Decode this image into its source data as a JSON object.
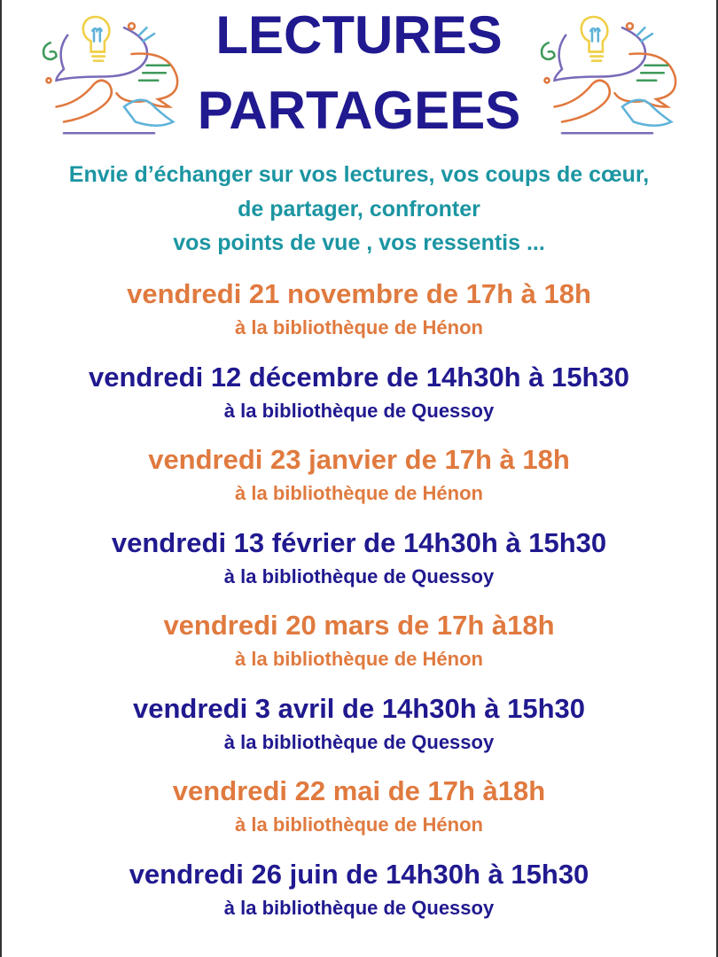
{
  "title": {
    "line1": "LECTURES",
    "line2": "PARTAGEES"
  },
  "subtitle": [
    "Envie d’échanger sur vos lectures, vos coups de cœur,",
    "de partager, confronter",
    "vos points de vue , vos ressentis ..."
  ],
  "illustration": {
    "icon": "speech-bubbles-hands-lightbulb-icon"
  },
  "colors": {
    "title": "#20198f",
    "subtitle": "#1b95a2",
    "orange": "#e07a3f",
    "navy": "#20198f"
  },
  "events": [
    {
      "date": "vendredi 21 novembre de 17h à 18h",
      "place": "à la bibliothèque de Hénon",
      "color": "orange"
    },
    {
      "date": "vendredi 12 décembre de 14h30h à 15h30",
      "place": "à la bibliothèque de Quessoy",
      "color": "navy"
    },
    {
      "date": "vendredi 23 janvier de 17h à 18h",
      "place": "à la bibliothèque de Hénon",
      "color": "orange"
    },
    {
      "date": "vendredi 13 février de 14h30h à 15h30",
      "place": "à la bibliothèque de Quessoy",
      "color": "navy"
    },
    {
      "date": "vendredi 20 mars de 17h à18h",
      "place": "à la bibliothèque de Hénon",
      "color": "orange"
    },
    {
      "date": "vendredi 3 avril de 14h30h à 15h30",
      "place": "à la bibliothèque de Quessoy",
      "color": "navy"
    },
    {
      "date": "vendredi 22 mai de 17h à18h",
      "place": "à la bibliothèque de Hénon",
      "color": "orange"
    },
    {
      "date": "vendredi 26 juin de 14h30h à 15h30",
      "place": "à la bibliothèque de Quessoy",
      "color": "navy"
    }
  ]
}
